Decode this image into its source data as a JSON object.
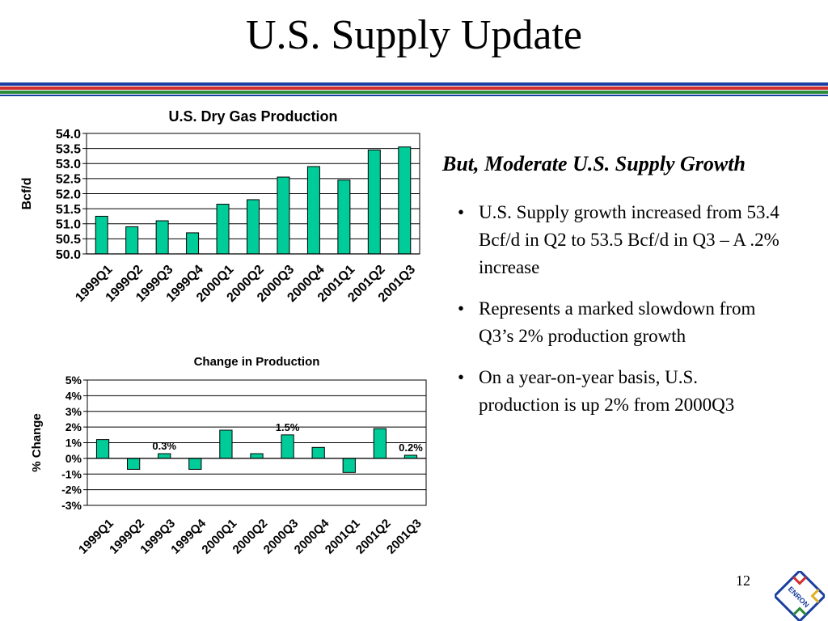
{
  "slide": {
    "title": "U.S. Supply Update",
    "subhead": "But, Moderate U.S. Supply Growth",
    "bullets": [
      "U.S. Supply growth increased from 53.4 Bcf/d in Q2 to 53.5 Bcf/d in Q3 – A .2% increase",
      "Represents a marked slowdown from Q3’s 2% production growth",
      "On a year-on-year basis, U.S. production is up 2% from 2000Q3"
    ],
    "bullet_glyph": "•",
    "page_number": "12",
    "logo_text": "ENRON",
    "rule_colors": [
      "#1a3fa0",
      "#d03030",
      "#2a8a3a",
      "#1a3fa0"
    ]
  },
  "chart_data": [
    {
      "type": "bar",
      "title": "U.S. Dry Gas Production",
      "ylabel": "Bcf/d",
      "xlabel": "",
      "categories": [
        "1999Q1",
        "1999Q2",
        "1999Q3",
        "1999Q4",
        "2000Q1",
        "2000Q2",
        "2000Q3",
        "2000Q4",
        "2001Q1",
        "2001Q2",
        "2001Q3"
      ],
      "values": [
        51.25,
        50.9,
        51.1,
        50.7,
        51.65,
        51.8,
        52.55,
        52.9,
        52.45,
        53.45,
        53.55
      ],
      "ylim": [
        50.0,
        54.0
      ],
      "yticks": [
        "50.0",
        "50.5",
        "51.0",
        "51.5",
        "52.0",
        "52.5",
        "53.0",
        "53.5",
        "54.0"
      ],
      "grid": true,
      "bar_color": "#00cc99",
      "data_labels": []
    },
    {
      "type": "bar",
      "title": "Change in Production",
      "ylabel": "% Change",
      "xlabel": "",
      "categories": [
        "1999Q1",
        "1999Q2",
        "1999Q3",
        "1999Q4",
        "2000Q1",
        "2000Q2",
        "2000Q3",
        "2000Q4",
        "2001Q1",
        "2001Q2",
        "2001Q3"
      ],
      "values": [
        1.2,
        -0.7,
        0.3,
        -0.7,
        1.8,
        0.3,
        1.5,
        0.7,
        -0.9,
        1.9,
        0.2
      ],
      "ylim": [
        -3,
        5
      ],
      "yticks": [
        "-3%",
        "-2%",
        "-1%",
        "0%",
        "1%",
        "2%",
        "3%",
        "4%",
        "5%"
      ],
      "grid": true,
      "bar_color": "#00cc99",
      "data_labels": [
        {
          "index": 2,
          "text": "0.3%"
        },
        {
          "index": 6,
          "text": "1.5%"
        },
        {
          "index": 10,
          "text": "0.2%"
        }
      ]
    }
  ]
}
